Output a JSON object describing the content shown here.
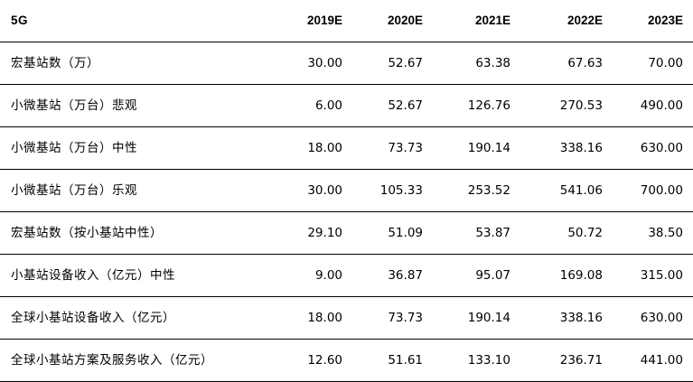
{
  "header": {
    "label": "5G",
    "years": [
      "2019E",
      "2020E",
      "2021E",
      "2022E",
      "2023E"
    ]
  },
  "rows": [
    {
      "label": "宏基站数（万）",
      "values": [
        "30.00",
        "52.67",
        "63.38",
        "67.63",
        "70.00"
      ]
    },
    {
      "label": "小微基站（万台）悲观",
      "values": [
        "6.00",
        "52.67",
        "126.76",
        "270.53",
        "490.00"
      ]
    },
    {
      "label": "小微基站（万台）中性",
      "values": [
        "18.00",
        "73.73",
        "190.14",
        "338.16",
        "630.00"
      ]
    },
    {
      "label": "小微基站（万台）乐观",
      "values": [
        "30.00",
        "105.33",
        "253.52",
        "541.06",
        "700.00"
      ]
    },
    {
      "label": "宏基站数（按小基站中性）",
      "values": [
        "29.10",
        "51.09",
        "53.87",
        "50.72",
        "38.50"
      ]
    },
    {
      "label": "小基站设备收入（亿元）中性",
      "values": [
        "9.00",
        "36.87",
        "95.07",
        "169.08",
        "315.00"
      ]
    },
    {
      "label": "全球小基站设备收入（亿元）",
      "values": [
        "18.00",
        "73.73",
        "190.14",
        "338.16",
        "630.00"
      ]
    },
    {
      "label": "全球小基站方案及服务收入（亿元）",
      "values": [
        "12.60",
        "51.61",
        "133.10",
        "236.71",
        "441.00"
      ]
    }
  ]
}
